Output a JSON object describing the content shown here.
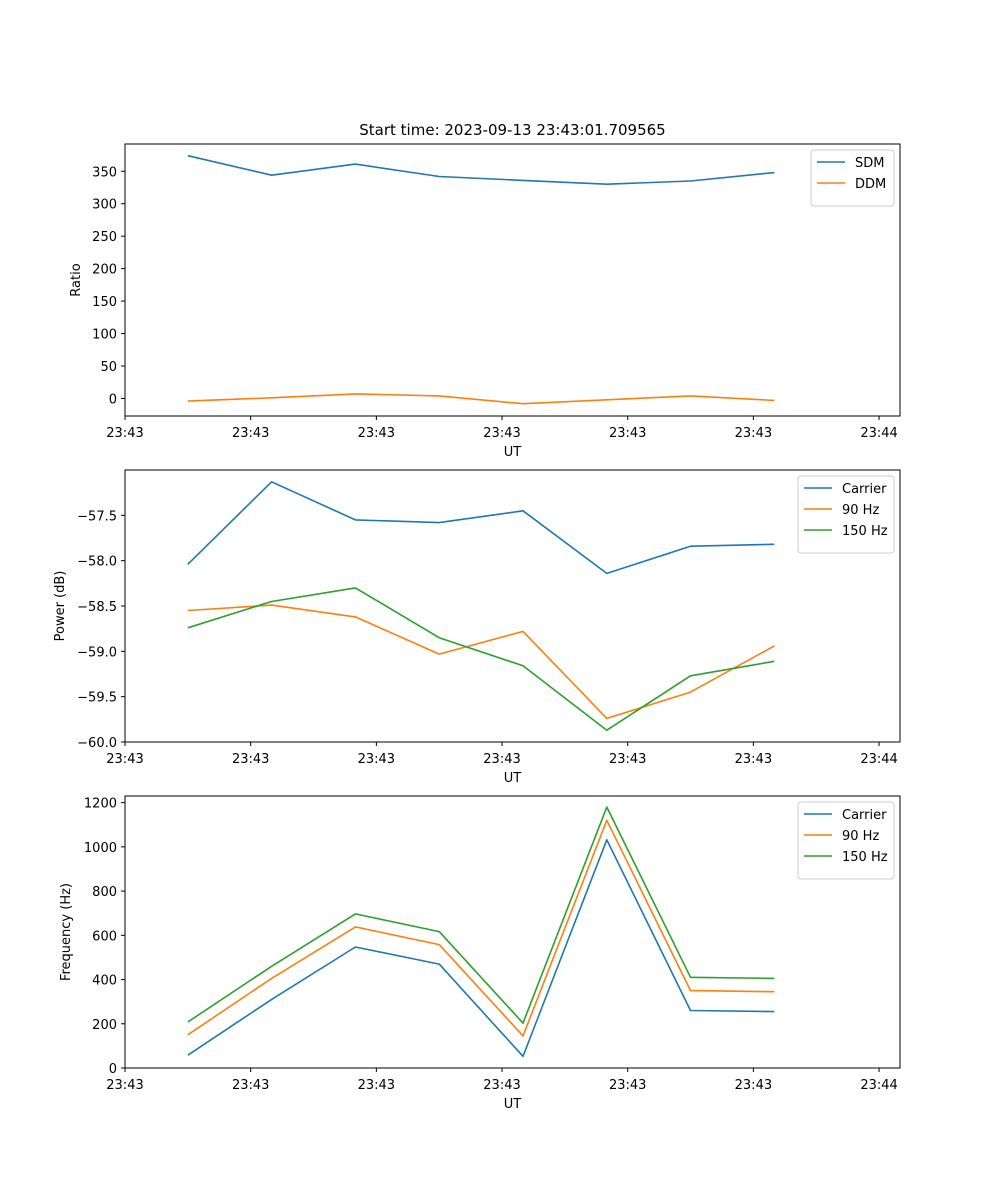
{
  "chart_data": [
    {
      "type": "line",
      "title": "Start time: 2023-09-13 23:43:01.709565",
      "xlabel": "UT",
      "ylabel": "Ratio",
      "x_tick_labels": [
        "23:43",
        "23:43",
        "23:43",
        "23:43",
        "23:43",
        "23:43",
        "23:44"
      ],
      "xlim": [
        -0.75,
        8.5
      ],
      "ylim": [
        -27,
        392
      ],
      "yticks": [
        0,
        50,
        100,
        150,
        200,
        250,
        300,
        350
      ],
      "y_tick_labels": [
        "0",
        "50",
        "100",
        "150",
        "200",
        "250",
        "300",
        "350"
      ],
      "x": [
        0,
        1,
        2,
        3,
        4,
        5,
        6,
        7
      ],
      "legend_loc": "upper right",
      "series": [
        {
          "name": "SDM",
          "color": "#1f77b4",
          "values": [
            374,
            344,
            361,
            342,
            336,
            330,
            335,
            348
          ]
        },
        {
          "name": "DDM",
          "color": "#ff7f0e",
          "values": [
            -4,
            1,
            7,
            4,
            -8,
            -2,
            4,
            -3
          ]
        }
      ]
    },
    {
      "type": "line",
      "title": "",
      "xlabel": "UT",
      "ylabel": "Power (dB)",
      "x_tick_labels": [
        "23:43",
        "23:43",
        "23:43",
        "23:43",
        "23:43",
        "23:43",
        "23:44"
      ],
      "xlim": [
        -0.75,
        8.5
      ],
      "ylim": [
        -60.0,
        -57.0
      ],
      "yticks": [
        -60.0,
        -59.5,
        -59.0,
        -58.5,
        -58.0,
        -57.5
      ],
      "y_tick_labels": [
        "−60.0",
        "−59.5",
        "−59.0",
        "−58.5",
        "−58.0",
        "−57.5"
      ],
      "x": [
        0,
        1,
        2,
        3,
        4,
        5,
        6,
        7
      ],
      "legend_loc": "upper right",
      "series": [
        {
          "name": "Carrier",
          "color": "#1f77b4",
          "values": [
            -58.04,
            -57.13,
            -57.55,
            -57.58,
            -57.45,
            -58.14,
            -57.84,
            -57.82
          ]
        },
        {
          "name": "90 Hz",
          "color": "#ff7f0e",
          "values": [
            -58.55,
            -58.49,
            -58.62,
            -59.03,
            -58.78,
            -59.74,
            -59.45,
            -58.94
          ]
        },
        {
          "name": "150 Hz",
          "color": "#2ca02c",
          "values": [
            -58.74,
            -58.45,
            -58.3,
            -58.85,
            -59.16,
            -59.87,
            -59.27,
            -59.11
          ]
        }
      ]
    },
    {
      "type": "line",
      "title": "",
      "xlabel": "UT",
      "ylabel": "Frequency (Hz)",
      "x_tick_labels": [
        "23:43",
        "23:43",
        "23:43",
        "23:43",
        "23:43",
        "23:43",
        "23:44"
      ],
      "xlim": [
        -0.75,
        8.5
      ],
      "ylim": [
        0,
        1230
      ],
      "yticks": [
        0,
        200,
        400,
        600,
        800,
        1000,
        1200
      ],
      "y_tick_labels": [
        "0",
        "200",
        "400",
        "600",
        "800",
        "1000",
        "1200"
      ],
      "x": [
        0,
        1,
        2,
        3,
        4,
        5,
        6,
        7
      ],
      "legend_loc": "upper right",
      "series": [
        {
          "name": "Carrier",
          "color": "#1f77b4",
          "values": [
            58,
            310,
            547,
            470,
            53,
            1032,
            260,
            255
          ]
        },
        {
          "name": "90 Hz",
          "color": "#ff7f0e",
          "values": [
            150,
            405,
            638,
            558,
            145,
            1120,
            350,
            345
          ]
        },
        {
          "name": "150 Hz",
          "color": "#2ca02c",
          "values": [
            208,
            460,
            697,
            617,
            203,
            1180,
            410,
            405
          ]
        }
      ]
    }
  ]
}
